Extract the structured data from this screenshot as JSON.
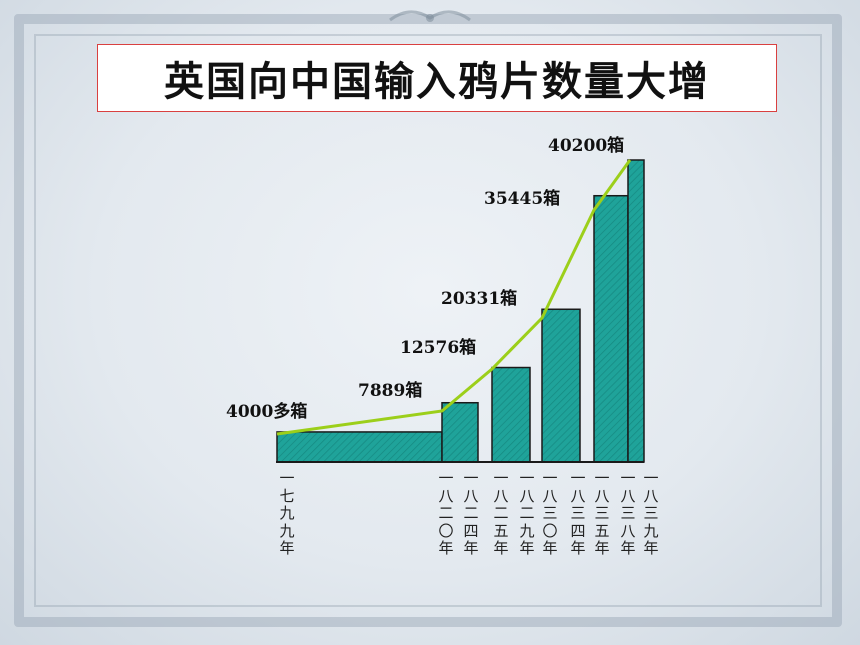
{
  "slide": {
    "title": "英国向中国输入鸦片数量大增"
  },
  "theme": {
    "bar_fill": "#1fa39a",
    "bar_stroke": "#1a1a1a",
    "trend_line": "#9ccf1a",
    "title_border": "#d94040"
  },
  "chart_data": {
    "type": "bar",
    "categories": [
      "一七九九年",
      "一八二〇年",
      "一八二四年",
      "一八二五年",
      "一八二九年",
      "一八三〇年",
      "一八三四年",
      "一八三五年",
      "一八三八年",
      "一八三九年"
    ],
    "bars": [
      {
        "label": "4000多箱",
        "value": 4000,
        "from": "一七九九年",
        "to": "一八二〇年"
      },
      {
        "label": "7889箱",
        "value": 7889,
        "from": "一八二〇年",
        "to": "一八二四年"
      },
      {
        "label": "12576箱",
        "value": 12576,
        "from": "一八二五年",
        "to": "一八二九年"
      },
      {
        "label": "20331箱",
        "value": 20331,
        "from": "一八三〇年",
        "to": "一八三四年"
      },
      {
        "label": "35445箱",
        "value": 35445,
        "from": "一八三五年",
        "to": "一八三八年"
      },
      {
        "label": "40200箱",
        "value": 40200,
        "from": "一八三八年",
        "to": "一八三九年"
      }
    ],
    "trend_line": true,
    "ylim": [
      0,
      42000
    ]
  }
}
